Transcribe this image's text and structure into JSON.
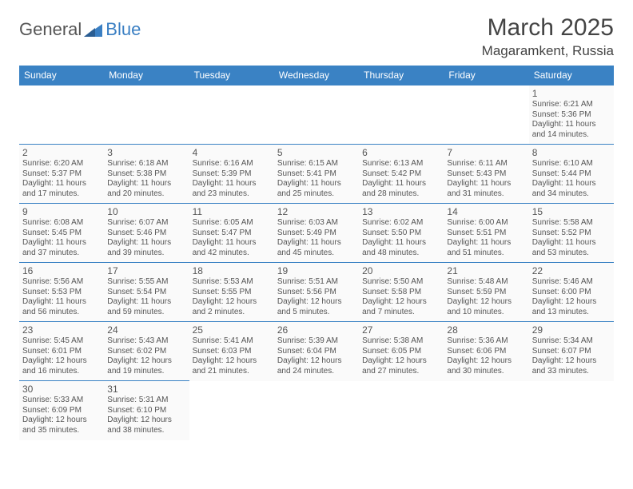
{
  "logo": {
    "text1": "General",
    "text2": "Blue"
  },
  "title": "March 2025",
  "location": "Magaramkent, Russia",
  "colors": {
    "header_bg": "#3a82c4",
    "header_text": "#ffffff",
    "border": "#3a82c4",
    "body_text": "#555555",
    "page_bg": "#ffffff",
    "cell_bg": "#fafafa"
  },
  "weekdays": [
    "Sunday",
    "Monday",
    "Tuesday",
    "Wednesday",
    "Thursday",
    "Friday",
    "Saturday"
  ],
  "weeks": [
    [
      null,
      null,
      null,
      null,
      null,
      null,
      {
        "d": "1",
        "sr": "6:21 AM",
        "ss": "5:36 PM",
        "dl": "11 hours and 14 minutes."
      }
    ],
    [
      {
        "d": "2",
        "sr": "6:20 AM",
        "ss": "5:37 PM",
        "dl": "11 hours and 17 minutes."
      },
      {
        "d": "3",
        "sr": "6:18 AM",
        "ss": "5:38 PM",
        "dl": "11 hours and 20 minutes."
      },
      {
        "d": "4",
        "sr": "6:16 AM",
        "ss": "5:39 PM",
        "dl": "11 hours and 23 minutes."
      },
      {
        "d": "5",
        "sr": "6:15 AM",
        "ss": "5:41 PM",
        "dl": "11 hours and 25 minutes."
      },
      {
        "d": "6",
        "sr": "6:13 AM",
        "ss": "5:42 PM",
        "dl": "11 hours and 28 minutes."
      },
      {
        "d": "7",
        "sr": "6:11 AM",
        "ss": "5:43 PM",
        "dl": "11 hours and 31 minutes."
      },
      {
        "d": "8",
        "sr": "6:10 AM",
        "ss": "5:44 PM",
        "dl": "11 hours and 34 minutes."
      }
    ],
    [
      {
        "d": "9",
        "sr": "6:08 AM",
        "ss": "5:45 PM",
        "dl": "11 hours and 37 minutes."
      },
      {
        "d": "10",
        "sr": "6:07 AM",
        "ss": "5:46 PM",
        "dl": "11 hours and 39 minutes."
      },
      {
        "d": "11",
        "sr": "6:05 AM",
        "ss": "5:47 PM",
        "dl": "11 hours and 42 minutes."
      },
      {
        "d": "12",
        "sr": "6:03 AM",
        "ss": "5:49 PM",
        "dl": "11 hours and 45 minutes."
      },
      {
        "d": "13",
        "sr": "6:02 AM",
        "ss": "5:50 PM",
        "dl": "11 hours and 48 minutes."
      },
      {
        "d": "14",
        "sr": "6:00 AM",
        "ss": "5:51 PM",
        "dl": "11 hours and 51 minutes."
      },
      {
        "d": "15",
        "sr": "5:58 AM",
        "ss": "5:52 PM",
        "dl": "11 hours and 53 minutes."
      }
    ],
    [
      {
        "d": "16",
        "sr": "5:56 AM",
        "ss": "5:53 PM",
        "dl": "11 hours and 56 minutes."
      },
      {
        "d": "17",
        "sr": "5:55 AM",
        "ss": "5:54 PM",
        "dl": "11 hours and 59 minutes."
      },
      {
        "d": "18",
        "sr": "5:53 AM",
        "ss": "5:55 PM",
        "dl": "12 hours and 2 minutes."
      },
      {
        "d": "19",
        "sr": "5:51 AM",
        "ss": "5:56 PM",
        "dl": "12 hours and 5 minutes."
      },
      {
        "d": "20",
        "sr": "5:50 AM",
        "ss": "5:58 PM",
        "dl": "12 hours and 7 minutes."
      },
      {
        "d": "21",
        "sr": "5:48 AM",
        "ss": "5:59 PM",
        "dl": "12 hours and 10 minutes."
      },
      {
        "d": "22",
        "sr": "5:46 AM",
        "ss": "6:00 PM",
        "dl": "12 hours and 13 minutes."
      }
    ],
    [
      {
        "d": "23",
        "sr": "5:45 AM",
        "ss": "6:01 PM",
        "dl": "12 hours and 16 minutes."
      },
      {
        "d": "24",
        "sr": "5:43 AM",
        "ss": "6:02 PM",
        "dl": "12 hours and 19 minutes."
      },
      {
        "d": "25",
        "sr": "5:41 AM",
        "ss": "6:03 PM",
        "dl": "12 hours and 21 minutes."
      },
      {
        "d": "26",
        "sr": "5:39 AM",
        "ss": "6:04 PM",
        "dl": "12 hours and 24 minutes."
      },
      {
        "d": "27",
        "sr": "5:38 AM",
        "ss": "6:05 PM",
        "dl": "12 hours and 27 minutes."
      },
      {
        "d": "28",
        "sr": "5:36 AM",
        "ss": "6:06 PM",
        "dl": "12 hours and 30 minutes."
      },
      {
        "d": "29",
        "sr": "5:34 AM",
        "ss": "6:07 PM",
        "dl": "12 hours and 33 minutes."
      }
    ],
    [
      {
        "d": "30",
        "sr": "5:33 AM",
        "ss": "6:09 PM",
        "dl": "12 hours and 35 minutes."
      },
      {
        "d": "31",
        "sr": "5:31 AM",
        "ss": "6:10 PM",
        "dl": "12 hours and 38 minutes."
      },
      null,
      null,
      null,
      null,
      null
    ]
  ],
  "labels": {
    "sunrise": "Sunrise:",
    "sunset": "Sunset:",
    "daylight": "Daylight:"
  }
}
